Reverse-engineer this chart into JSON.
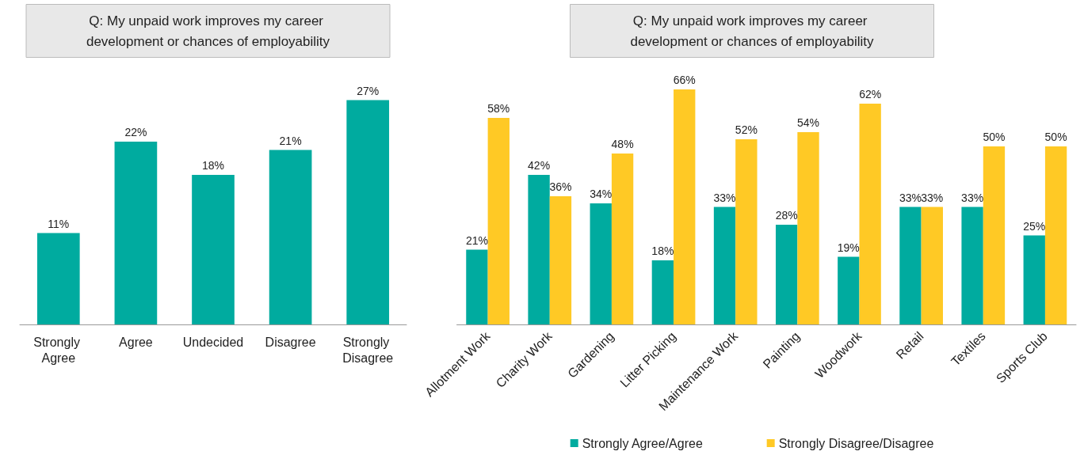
{
  "chart_data": [
    {
      "type": "bar",
      "title": "Q: My unpaid work improves my career development or chances of employability",
      "categories": [
        "Strongly Agree",
        "Agree",
        "Undecided",
        "Disagree",
        "Strongly Disagree"
      ],
      "values": [
        11,
        22,
        18,
        21,
        27
      ],
      "value_labels": [
        "11%",
        "22%",
        "18%",
        "21%",
        "27%"
      ],
      "color": "#00ab9f",
      "legend": false
    },
    {
      "type": "bar",
      "title": "Q: My unpaid work improves my career development or chances of employability",
      "categories": [
        "Allotment Work",
        "Charity Work",
        "Gardening",
        "Litter Picking",
        "Maintenance Work",
        "Painting",
        "Woodwork",
        "Retail",
        "Textiles",
        "Sports Club"
      ],
      "series": [
        {
          "name": "Strongly Agree/Agree",
          "color": "#00ab9f",
          "values": [
            21,
            42,
            34,
            18,
            33,
            28,
            19,
            33,
            33,
            25
          ],
          "value_labels": [
            "21%",
            "42%",
            "34%",
            "18%",
            "33%",
            "28%",
            "19%",
            "33%",
            "33%",
            "25%"
          ]
        },
        {
          "name": "Strongly Disagree/Disagree",
          "color": "#ffc925",
          "values": [
            58,
            36,
            48,
            66,
            52,
            54,
            62,
            33,
            50,
            50
          ],
          "value_labels": [
            "58%",
            "36%",
            "48%",
            "66%",
            "52%",
            "54%",
            "62%",
            "33%",
            "50%",
            "50%"
          ]
        }
      ],
      "legend": "bottom"
    }
  ]
}
